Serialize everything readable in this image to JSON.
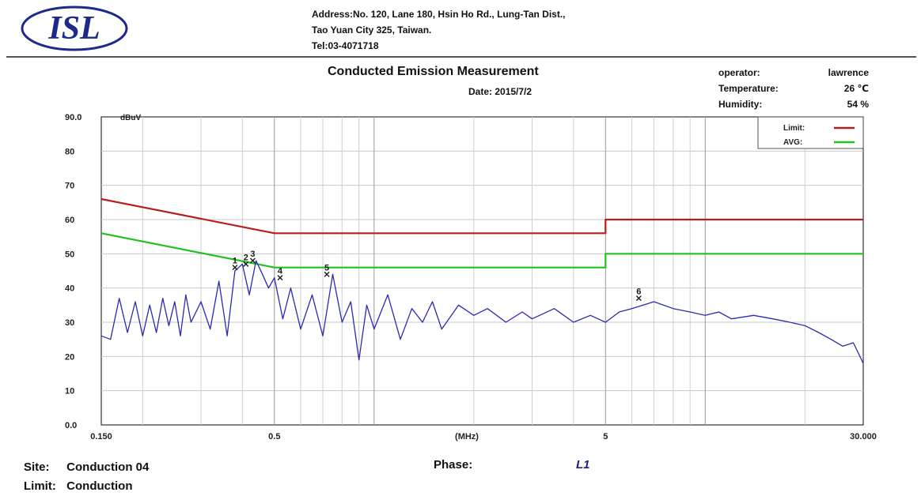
{
  "header": {
    "logo_text": "ISL",
    "address_line1": "Address:No. 120, Lane 180, Hsin Ho Rd., Lung-Tan Dist.,",
    "address_line2": "Tao Yuan City 325, Taiwan.",
    "tel": "Tel:03-4071718",
    "title": "Conducted Emission Measurement",
    "date": "Date: 2015/7/2",
    "operator_label": "operator:",
    "operator_value": "lawrence",
    "temperature_label": "Temperature:",
    "temperature_value": "26 ℃",
    "humidity_label": "Humidity:",
    "humidity_value": "54 %"
  },
  "footer": {
    "site_label": "Site:",
    "site_value": "Conduction 04",
    "phase_label": "Phase:",
    "phase_value": "L1",
    "limit_label": "Limit:",
    "limit_value": "Conduction"
  },
  "chart_data": {
    "type": "line",
    "ylabel": "dBuV",
    "xlabel": "(MHz)",
    "xscale": "log",
    "xlim": [
      0.15,
      30
    ],
    "ylim": [
      0,
      90
    ],
    "y_ticks": [
      {
        "value": 0,
        "label": "0.0"
      },
      {
        "value": 10,
        "label": "10"
      },
      {
        "value": 20,
        "label": "20"
      },
      {
        "value": 30,
        "label": "30"
      },
      {
        "value": 40,
        "label": "40"
      },
      {
        "value": 50,
        "label": "50"
      },
      {
        "value": 60,
        "label": "60"
      },
      {
        "value": 70,
        "label": "70"
      },
      {
        "value": 80,
        "label": "80"
      },
      {
        "value": 90,
        "label": "90.0"
      }
    ],
    "x_ticks": [
      {
        "value": 0.15,
        "label": "0.150"
      },
      {
        "value": 0.5,
        "label": "0.5"
      },
      {
        "value": 5,
        "label": "5"
      },
      {
        "value": 30,
        "label": "30.000"
      }
    ],
    "grid": true,
    "legend_position": "top-right",
    "legend": [
      {
        "name": "Limit:",
        "color": "#b81c1c"
      },
      {
        "name": "AVG:",
        "color": "#22c21c"
      }
    ],
    "series": [
      {
        "name": "Limit:",
        "color": "#b81c1c",
        "x": [
          0.15,
          0.5,
          5,
          5,
          30
        ],
        "y": [
          66,
          56,
          56,
          60,
          60
        ]
      },
      {
        "name": "AVG:",
        "color": "#22c21c",
        "x": [
          0.15,
          0.5,
          5,
          5,
          30
        ],
        "y": [
          56,
          46,
          46,
          50,
          50
        ]
      },
      {
        "name": "",
        "color": "#2a2ab0",
        "x": [
          0.15,
          0.16,
          0.17,
          0.18,
          0.19,
          0.2,
          0.21,
          0.22,
          0.23,
          0.24,
          0.25,
          0.26,
          0.27,
          0.28,
          0.3,
          0.32,
          0.34,
          0.36,
          0.38,
          0.4,
          0.42,
          0.44,
          0.46,
          0.48,
          0.5,
          0.53,
          0.56,
          0.6,
          0.65,
          0.7,
          0.75,
          0.8,
          0.85,
          0.9,
          0.95,
          1.0,
          1.1,
          1.2,
          1.3,
          1.4,
          1.5,
          1.6,
          1.8,
          2.0,
          2.2,
          2.5,
          2.8,
          3.0,
          3.5,
          4.0,
          4.5,
          5.0,
          5.5,
          6.0,
          6.5,
          7.0,
          8.0,
          9.0,
          10.0,
          11.0,
          12.0,
          14.0,
          16.0,
          18.0,
          20.0,
          22.0,
          24.0,
          26.0,
          28.0,
          30.0
        ],
        "y": [
          26,
          25,
          37,
          27,
          36,
          26,
          35,
          27,
          37,
          29,
          36,
          26,
          38,
          30,
          36,
          28,
          42,
          26,
          45,
          47,
          38,
          48,
          44,
          40,
          43,
          31,
          40,
          28,
          38,
          26,
          44,
          30,
          36,
          19,
          35,
          28,
          38,
          25,
          34,
          30,
          36,
          28,
          35,
          32,
          34,
          30,
          33,
          31,
          34,
          30,
          32,
          30,
          33,
          34,
          35,
          36,
          34,
          33,
          32,
          33,
          31,
          32,
          31,
          30,
          29,
          27,
          25,
          23,
          24,
          18
        ]
      },
      {
        "name": "",
        "color": "#1a1a1a",
        "x": [
          0.38,
          0.41,
          0.43,
          0.52,
          0.72,
          6.3
        ],
        "y": [
          46,
          47,
          48,
          43,
          44,
          37
        ],
        "labels": [
          "1",
          "2",
          "3",
          "4",
          "5",
          "6"
        ]
      }
    ]
  }
}
